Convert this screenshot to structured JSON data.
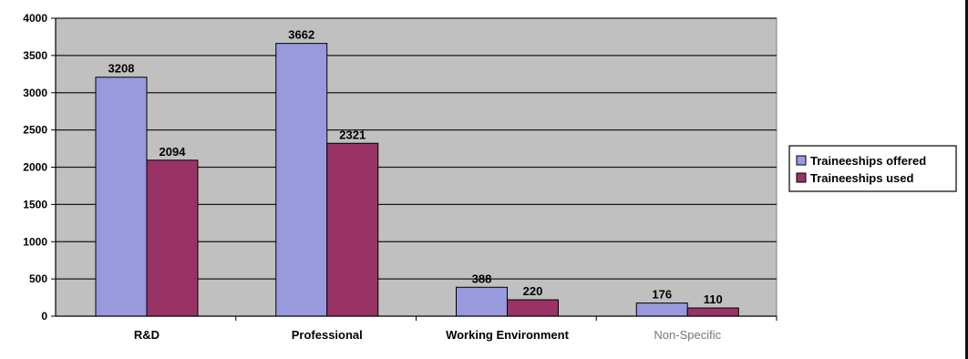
{
  "chart_data": {
    "type": "bar",
    "categories": [
      "R&D",
      "Professional",
      "Working Environment",
      "Non-Specific"
    ],
    "series": [
      {
        "name": "Traineeships offered",
        "values": [
          3208,
          3662,
          388,
          176
        ],
        "color": "#9999dd"
      },
      {
        "name": "Traineeships used",
        "values": [
          2094,
          2321,
          220,
          110
        ],
        "color": "#993366"
      }
    ],
    "data_labels": {
      "Traineeships offered": [
        "3208",
        "3662",
        "388",
        "176"
      ],
      "Traineeships used": [
        "2094",
        "2321",
        "220",
        "110"
      ]
    },
    "y_ticks": [
      "0",
      "500",
      "1000",
      "1500",
      "2000",
      "2500",
      "3000",
      "3500",
      "4000"
    ],
    "ylim": [
      0,
      4000
    ],
    "y_tick_values": [
      0,
      500,
      1000,
      1500,
      2000,
      2500,
      3000,
      3500,
      4000
    ],
    "grid": true,
    "legend_position": "right",
    "plot_background": "#c0c0c0",
    "title": "",
    "xlabel": "",
    "ylabel": ""
  }
}
